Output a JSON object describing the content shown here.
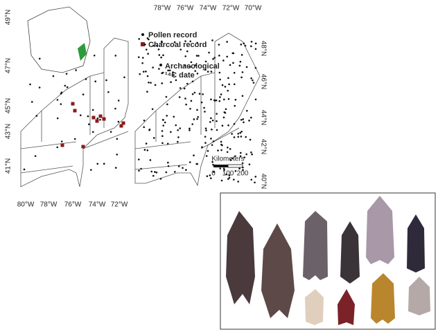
{
  "left_map": {
    "lat_labels": [
      "49°N",
      "47°N",
      "45°N",
      "43°N",
      "41°N"
    ],
    "lon_labels": [
      "80°W",
      "78°W",
      "76°W",
      "74°W",
      "72°W"
    ],
    "legend": [
      "Pollen record",
      "Charcoal record"
    ]
  },
  "right_map": {
    "lon_labels": [
      "78°W",
      "76°W",
      "74°W",
      "72°W",
      "70°W"
    ],
    "lat_labels": [
      "48°N",
      "46°N",
      "44°N",
      "42°N",
      "40°N"
    ],
    "legend": [
      "Archaeological",
      "¹⁴C date"
    ],
    "scale": {
      "title": "Kilometers",
      "labels": [
        "0",
        "100",
        "200"
      ]
    }
  }
}
